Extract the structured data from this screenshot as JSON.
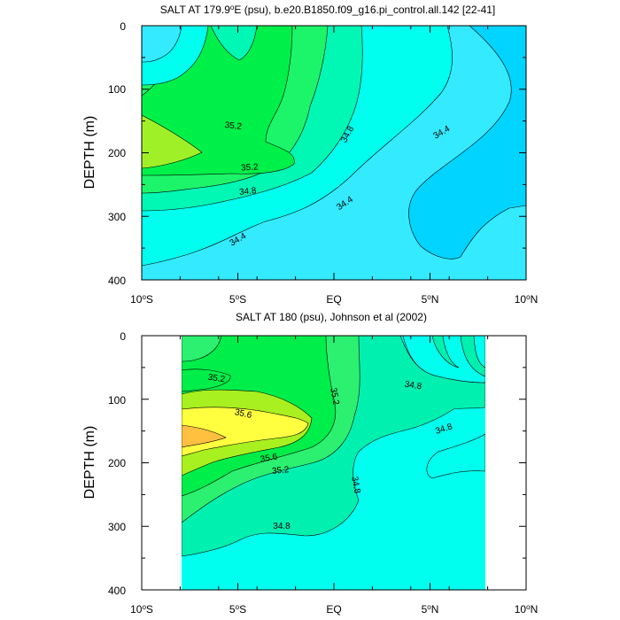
{
  "chart_data": [
    {
      "type": "contour",
      "title": "SALT AT 179.9°E (psu), b.e20.B1850.f09_g16.pi_control.all.142 [22-41]",
      "title_parts": {
        "pre": "SALT AT 179.9",
        "sup": "o",
        "post": "E (psu), b.e20.B1850.f09_g16.pi_control.all.142 [22-41]"
      },
      "xlabel": "",
      "ylabel": "DEPTH (m)",
      "xlim": [
        -10,
        10
      ],
      "ylim": [
        0,
        400
      ],
      "y_reversed": true,
      "x_ticks": [
        {
          "value": -10,
          "pre": "10",
          "sup": "o",
          "post": "S"
        },
        {
          "value": -5,
          "pre": "5",
          "sup": "o",
          "post": "S"
        },
        {
          "value": 0,
          "pre": "EQ",
          "sup": "",
          "post": ""
        },
        {
          "value": 5,
          "pre": "5",
          "sup": "o",
          "post": "N"
        },
        {
          "value": 10,
          "pre": "10",
          "sup": "o",
          "post": "N"
        }
      ],
      "y_ticks": [
        "0",
        "100",
        "200",
        "300",
        "400"
      ],
      "data_extent_x": [
        -10,
        10
      ],
      "fill_levels": [
        {
          "level": "<34.4",
          "color": "#00d4ff"
        },
        {
          "level": "34.4-34.6",
          "color": "#33eaff"
        },
        {
          "level": "34.6-34.8",
          "color": "#00ffee"
        },
        {
          "level": "34.8-35.0",
          "color": "#00f7b4"
        },
        {
          "level": "35.0-35.2",
          "color": "#1cf56a"
        },
        {
          "level": "35.2-35.4",
          "color": "#00f04a"
        },
        {
          "level": "35.4-35.6",
          "color": "#a0f028"
        }
      ],
      "contour_labels": [
        {
          "text": "35.2",
          "x": -5.6,
          "y": 160,
          "angle": 6
        },
        {
          "text": "34.8",
          "x": 1.1,
          "y": 175,
          "angle": -62
        },
        {
          "text": "35.2",
          "x": -4.3,
          "y": 222,
          "angle": -4
        },
        {
          "text": "34.4",
          "x": 6.1,
          "y": 167,
          "angle": -30
        },
        {
          "text": "34.8",
          "x": -4.3,
          "y": 262,
          "angle": -6
        },
        {
          "text": "34.4",
          "x": 0.8,
          "y": 283,
          "angle": -34
        },
        {
          "text": "34.4",
          "x": -4.0,
          "y": 340,
          "angle": -30
        }
      ]
    },
    {
      "type": "contour",
      "title": "SALT AT 180 (psu), Johnson et al (2002)",
      "title_parts": {
        "pre": "SALT AT 180 (psu), Johnson et al (2002)",
        "sup": "",
        "post": ""
      },
      "xlabel": "",
      "ylabel": "DEPTH (m)",
      "xlim": [
        -10,
        10
      ],
      "ylim": [
        0,
        400
      ],
      "y_reversed": true,
      "x_ticks": [
        {
          "value": -10,
          "pre": "10",
          "sup": "o",
          "post": "S"
        },
        {
          "value": -5,
          "pre": "5",
          "sup": "o",
          "post": "S"
        },
        {
          "value": 0,
          "pre": "EQ",
          "sup": "",
          "post": ""
        },
        {
          "value": 5,
          "pre": "5",
          "sup": "o",
          "post": "N"
        },
        {
          "value": 10,
          "pre": "10",
          "sup": "o",
          "post": "N"
        }
      ],
      "y_ticks": [
        "0",
        "100",
        "200",
        "300",
        "400"
      ],
      "data_extent_x": [
        -8,
        8
      ],
      "fill_levels": [
        {
          "level": "34.6-34.8",
          "color": "#00ffee"
        },
        {
          "level": "34.8-35.0",
          "color": "#00f0b0"
        },
        {
          "level": "35.0-35.2",
          "color": "#2cf070"
        },
        {
          "level": "35.2-35.4",
          "color": "#00ee4a"
        },
        {
          "level": "35.4-35.6",
          "color": "#a8f020"
        },
        {
          "level": "35.6-35.8",
          "color": "#ffff40"
        },
        {
          "level": ">35.8",
          "color": "#ffc040"
        }
      ],
      "contour_labels": [
        {
          "text": "35.2",
          "x": -6.2,
          "y": 68,
          "angle": 8
        },
        {
          "text": "35.2",
          "x": -0.1,
          "y": 97,
          "angle": 80
        },
        {
          "text": "34.8",
          "x": 4.0,
          "y": 80,
          "angle": 8
        },
        {
          "text": "35.6",
          "x": -4.8,
          "y": 126,
          "angle": 12
        },
        {
          "text": "34.8",
          "x": 5.7,
          "y": 147,
          "angle": -18
        },
        {
          "text": "35.6",
          "x": -3.4,
          "y": 193,
          "angle": -10
        },
        {
          "text": "35.2",
          "x": -2.8,
          "y": 214,
          "angle": -6
        },
        {
          "text": "34.8",
          "x": 1.1,
          "y": 240,
          "angle": -80
        },
        {
          "text": "34.8",
          "x": -2.7,
          "y": 298,
          "angle": 0
        }
      ]
    }
  ]
}
